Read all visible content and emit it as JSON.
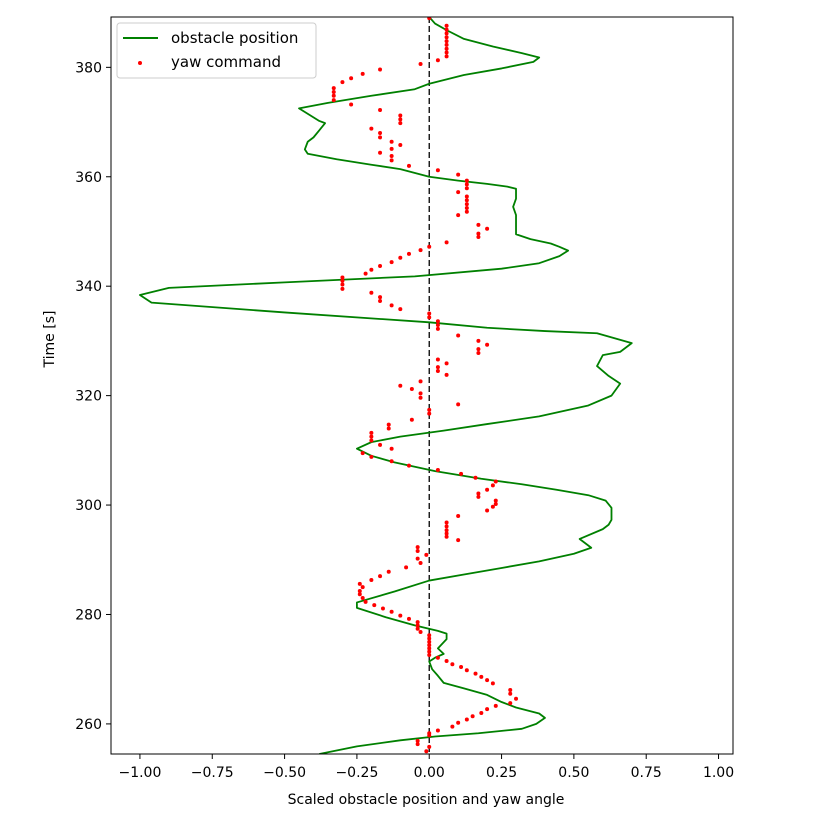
{
  "chart_data": {
    "type": "line+scatter",
    "xlabel": "Scaled obstacle position and yaw angle",
    "ylabel": "Time [s]",
    "xlim": [
      -1.1,
      1.05
    ],
    "ylim": [
      254.5,
      389.2
    ],
    "xticks": [
      -1.0,
      -0.75,
      -0.5,
      -0.25,
      0.0,
      0.25,
      0.5,
      0.75,
      1.0
    ],
    "xtick_labels": [
      "−1.00",
      "−0.75",
      "−0.50",
      "−0.25",
      "0.00",
      "0.25",
      "0.50",
      "0.75",
      "1.00"
    ],
    "yticks": [
      260,
      280,
      300,
      320,
      340,
      360,
      380
    ],
    "ytick_labels": [
      "260",
      "280",
      "300",
      "320",
      "340",
      "360",
      "380"
    ],
    "grid": false,
    "legend_position": "top-left",
    "reference_line": {
      "x": 0.0,
      "style": "dashed",
      "color": "#000000"
    },
    "series": [
      {
        "name": "obstacle position",
        "kind": "line",
        "color": "#008000",
        "points": [
          [
            -0.38,
            254.5
          ],
          [
            -0.25,
            255.9
          ],
          [
            -0.1,
            257.0
          ],
          [
            0.02,
            257.7
          ],
          [
            0.17,
            258.3
          ],
          [
            0.32,
            259.1
          ],
          [
            0.37,
            260.0
          ],
          [
            0.4,
            261.1
          ],
          [
            0.38,
            261.9
          ],
          [
            0.3,
            263.0
          ],
          [
            0.25,
            264.0
          ],
          [
            0.2,
            265.3
          ],
          [
            0.12,
            266.5
          ],
          [
            0.05,
            267.5
          ],
          [
            0.03,
            268.8
          ],
          [
            0.01,
            270.0
          ],
          [
            0.0,
            271.4
          ],
          [
            0.02,
            272.1
          ],
          [
            0.05,
            272.8
          ],
          [
            0.03,
            273.8
          ],
          [
            0.06,
            275.5
          ],
          [
            0.06,
            276.5
          ],
          [
            0.03,
            277.0
          ],
          [
            -0.05,
            278.0
          ],
          [
            -0.15,
            279.5
          ],
          [
            -0.25,
            281.2
          ],
          [
            -0.25,
            282.2
          ],
          [
            -0.12,
            284.2
          ],
          [
            0.0,
            286.2
          ],
          [
            0.12,
            287.3
          ],
          [
            0.25,
            288.5
          ],
          [
            0.38,
            289.7
          ],
          [
            0.5,
            291.1
          ],
          [
            0.56,
            292.2
          ],
          [
            0.52,
            293.8
          ],
          [
            0.6,
            295.6
          ],
          [
            0.62,
            296.4
          ],
          [
            0.63,
            297.3
          ],
          [
            0.63,
            299.5
          ],
          [
            0.61,
            300.8
          ],
          [
            0.55,
            301.8
          ],
          [
            0.44,
            302.8
          ],
          [
            0.32,
            303.8
          ],
          [
            0.18,
            304.8
          ],
          [
            0.02,
            306.2
          ],
          [
            -0.12,
            307.8
          ],
          [
            -0.2,
            309.0
          ],
          [
            -0.25,
            310.3
          ],
          [
            -0.2,
            311.5
          ],
          [
            -0.1,
            312.5
          ],
          [
            0.05,
            313.6
          ],
          [
            0.2,
            314.8
          ],
          [
            0.38,
            316.2
          ],
          [
            0.55,
            318.2
          ],
          [
            0.63,
            320.0
          ],
          [
            0.66,
            322.2
          ],
          [
            0.62,
            323.6
          ],
          [
            0.58,
            325.4
          ],
          [
            0.6,
            327.4
          ],
          [
            0.66,
            328.0
          ],
          [
            0.7,
            329.6
          ],
          [
            0.58,
            331.4
          ],
          [
            0.4,
            331.8
          ],
          [
            0.2,
            332.4
          ],
          [
            0.0,
            333.4
          ],
          [
            -0.5,
            335.2
          ],
          [
            -0.96,
            337.0
          ],
          [
            -1.0,
            338.4
          ],
          [
            -0.9,
            339.7
          ],
          [
            -0.5,
            340.7
          ],
          [
            -0.05,
            341.8
          ],
          [
            0.25,
            343.2
          ],
          [
            0.38,
            344.2
          ],
          [
            0.45,
            345.5
          ],
          [
            0.48,
            346.5
          ],
          [
            0.45,
            347.2
          ],
          [
            0.42,
            347.8
          ],
          [
            0.35,
            348.6
          ],
          [
            0.3,
            349.5
          ],
          [
            0.3,
            351.0
          ],
          [
            0.3,
            353.0
          ],
          [
            0.29,
            354.5
          ],
          [
            0.3,
            356.0
          ],
          [
            0.3,
            357.8
          ],
          [
            0.27,
            358.2
          ],
          [
            0.2,
            358.7
          ],
          [
            0.1,
            359.3
          ],
          [
            0.0,
            360.0
          ],
          [
            -0.1,
            361.4
          ],
          [
            -0.2,
            362.2
          ],
          [
            -0.32,
            363.2
          ],
          [
            -0.42,
            364.2
          ],
          [
            -0.43,
            365.0
          ],
          [
            -0.42,
            366.4
          ],
          [
            -0.4,
            367.2
          ],
          [
            -0.38,
            368.5
          ],
          [
            -0.36,
            369.8
          ],
          [
            -0.38,
            370.2
          ],
          [
            -0.45,
            372.5
          ],
          [
            -0.35,
            373.5
          ],
          [
            -0.2,
            374.8
          ],
          [
            -0.05,
            376.0
          ],
          [
            0.0,
            377.0
          ],
          [
            0.12,
            378.6
          ],
          [
            0.25,
            379.8
          ],
          [
            0.36,
            381.0
          ],
          [
            0.38,
            381.8
          ],
          [
            0.32,
            382.6
          ],
          [
            0.22,
            383.8
          ],
          [
            0.12,
            385.2
          ],
          [
            0.06,
            386.8
          ],
          [
            0.02,
            388.0
          ],
          [
            0.0,
            389.2
          ]
        ]
      },
      {
        "name": "yaw command",
        "kind": "scatter",
        "color": "#ff0000",
        "points": [
          [
            -0.01,
            255.0
          ],
          [
            0.0,
            255.8
          ],
          [
            -0.04,
            256.3
          ],
          [
            -0.04,
            256.9
          ],
          [
            0.0,
            257.9
          ],
          [
            0.0,
            258.3
          ],
          [
            0.03,
            258.8
          ],
          [
            0.08,
            259.5
          ],
          [
            0.1,
            260.2
          ],
          [
            0.13,
            260.8
          ],
          [
            0.15,
            261.4
          ],
          [
            0.18,
            262.0
          ],
          [
            0.2,
            262.7
          ],
          [
            0.23,
            263.3
          ],
          [
            0.28,
            263.8
          ],
          [
            0.3,
            264.6
          ],
          [
            0.28,
            265.5
          ],
          [
            0.28,
            266.2
          ],
          [
            0.22,
            267.4
          ],
          [
            0.2,
            268.0
          ],
          [
            0.18,
            268.6
          ],
          [
            0.16,
            269.2
          ],
          [
            0.13,
            269.8
          ],
          [
            0.11,
            270.4
          ],
          [
            0.08,
            270.9
          ],
          [
            0.06,
            271.5
          ],
          [
            0.03,
            272.1
          ],
          [
            0.0,
            272.6
          ],
          [
            0.0,
            273.2
          ],
          [
            0.0,
            273.8
          ],
          [
            0.0,
            274.4
          ],
          [
            0.0,
            275.0
          ],
          [
            0.0,
            275.6
          ],
          [
            0.0,
            276.2
          ],
          [
            -0.03,
            276.8
          ],
          [
            -0.04,
            277.4
          ],
          [
            -0.04,
            278.0
          ],
          [
            -0.04,
            278.6
          ],
          [
            -0.07,
            279.2
          ],
          [
            -0.1,
            279.8
          ],
          [
            -0.13,
            280.5
          ],
          [
            -0.16,
            281.1
          ],
          [
            -0.19,
            281.7
          ],
          [
            -0.22,
            282.3
          ],
          [
            -0.23,
            283.0
          ],
          [
            -0.24,
            283.7
          ],
          [
            -0.24,
            284.3
          ],
          [
            -0.23,
            285.0
          ],
          [
            -0.24,
            285.6
          ],
          [
            -0.2,
            286.3
          ],
          [
            -0.17,
            287.0
          ],
          [
            -0.14,
            287.8
          ],
          [
            -0.08,
            288.6
          ],
          [
            -0.03,
            289.4
          ],
          [
            -0.04,
            290.2
          ],
          [
            -0.01,
            290.9
          ],
          [
            -0.04,
            291.6
          ],
          [
            -0.04,
            292.3
          ],
          [
            0.1,
            293.6
          ],
          [
            0.06,
            294.2
          ],
          [
            0.06,
            294.8
          ],
          [
            0.06,
            295.4
          ],
          [
            0.06,
            296.1
          ],
          [
            0.06,
            296.8
          ],
          [
            0.1,
            298.0
          ],
          [
            0.2,
            299.0
          ],
          [
            0.22,
            299.7
          ],
          [
            0.23,
            300.2
          ],
          [
            0.23,
            300.8
          ],
          [
            0.17,
            301.5
          ],
          [
            0.17,
            302.1
          ],
          [
            0.2,
            302.8
          ],
          [
            0.22,
            303.6
          ],
          [
            0.23,
            304.3
          ],
          [
            0.16,
            305.0
          ],
          [
            0.11,
            305.7
          ],
          [
            0.03,
            306.4
          ],
          [
            -0.07,
            307.2
          ],
          [
            -0.13,
            308.0
          ],
          [
            -0.2,
            308.8
          ],
          [
            -0.23,
            309.5
          ],
          [
            -0.13,
            310.3
          ],
          [
            -0.17,
            311.0
          ],
          [
            -0.2,
            311.8
          ],
          [
            -0.2,
            312.5
          ],
          [
            -0.2,
            313.2
          ],
          [
            -0.14,
            314.0
          ],
          [
            -0.14,
            314.7
          ],
          [
            -0.06,
            315.6
          ],
          [
            0.0,
            316.7
          ],
          [
            0.0,
            317.4
          ],
          [
            0.1,
            318.4
          ],
          [
            -0.03,
            319.6
          ],
          [
            -0.03,
            320.4
          ],
          [
            -0.06,
            321.2
          ],
          [
            -0.1,
            321.8
          ],
          [
            -0.03,
            322.6
          ],
          [
            0.06,
            323.8
          ],
          [
            0.03,
            324.5
          ],
          [
            0.03,
            325.2
          ],
          [
            0.06,
            325.9
          ],
          [
            0.03,
            326.6
          ],
          [
            0.17,
            327.8
          ],
          [
            0.17,
            328.5
          ],
          [
            0.2,
            329.3
          ],
          [
            0.17,
            330.0
          ],
          [
            0.1,
            331.0
          ],
          [
            0.03,
            332.2
          ],
          [
            0.03,
            332.9
          ],
          [
            0.03,
            333.6
          ],
          [
            0.0,
            334.3
          ],
          [
            0.0,
            335.0
          ],
          [
            -0.1,
            335.8
          ],
          [
            -0.13,
            336.5
          ],
          [
            -0.17,
            337.3
          ],
          [
            -0.17,
            338.0
          ],
          [
            -0.2,
            338.8
          ],
          [
            -0.3,
            339.5
          ],
          [
            -0.3,
            340.3
          ],
          [
            -0.3,
            341.0
          ],
          [
            -0.3,
            341.6
          ],
          [
            -0.22,
            342.3
          ],
          [
            -0.2,
            343.0
          ],
          [
            -0.17,
            343.7
          ],
          [
            -0.13,
            344.4
          ],
          [
            -0.1,
            345.2
          ],
          [
            -0.07,
            345.9
          ],
          [
            -0.03,
            346.6
          ],
          [
            0.0,
            347.2
          ],
          [
            0.06,
            348.0
          ],
          [
            0.17,
            349.0
          ],
          [
            0.17,
            349.6
          ],
          [
            0.2,
            350.5
          ],
          [
            0.17,
            351.2
          ],
          [
            0.1,
            353.0
          ],
          [
            0.13,
            353.6
          ],
          [
            0.13,
            354.3
          ],
          [
            0.13,
            355.0
          ],
          [
            0.13,
            355.7
          ],
          [
            0.13,
            356.4
          ],
          [
            0.1,
            357.2
          ],
          [
            0.13,
            357.9
          ],
          [
            0.13,
            358.6
          ],
          [
            0.13,
            359.3
          ],
          [
            0.1,
            360.4
          ],
          [
            0.03,
            361.2
          ],
          [
            -0.07,
            362.0
          ],
          [
            -0.13,
            363.0
          ],
          [
            -0.13,
            363.8
          ],
          [
            -0.17,
            364.4
          ],
          [
            -0.13,
            365.1
          ],
          [
            -0.1,
            365.8
          ],
          [
            -0.13,
            366.4
          ],
          [
            -0.17,
            367.2
          ],
          [
            -0.17,
            368.0
          ],
          [
            -0.2,
            368.8
          ],
          [
            -0.1,
            369.8
          ],
          [
            -0.1,
            370.5
          ],
          [
            -0.1,
            371.2
          ],
          [
            -0.17,
            372.2
          ],
          [
            -0.27,
            373.2
          ],
          [
            -0.33,
            374.0
          ],
          [
            -0.33,
            374.8
          ],
          [
            -0.33,
            375.5
          ],
          [
            -0.33,
            376.2
          ],
          [
            -0.3,
            377.3
          ],
          [
            -0.27,
            378.0
          ],
          [
            -0.23,
            378.8
          ],
          [
            -0.17,
            379.6
          ],
          [
            -0.03,
            380.6
          ],
          [
            0.03,
            381.3
          ],
          [
            0.06,
            382.0
          ],
          [
            0.06,
            382.7
          ],
          [
            0.06,
            383.4
          ],
          [
            0.06,
            384.1
          ],
          [
            0.06,
            384.8
          ],
          [
            0.06,
            385.5
          ],
          [
            0.06,
            386.2
          ],
          [
            0.06,
            386.9
          ],
          [
            0.06,
            387.6
          ],
          [
            0.0,
            389.0
          ]
        ]
      }
    ]
  }
}
